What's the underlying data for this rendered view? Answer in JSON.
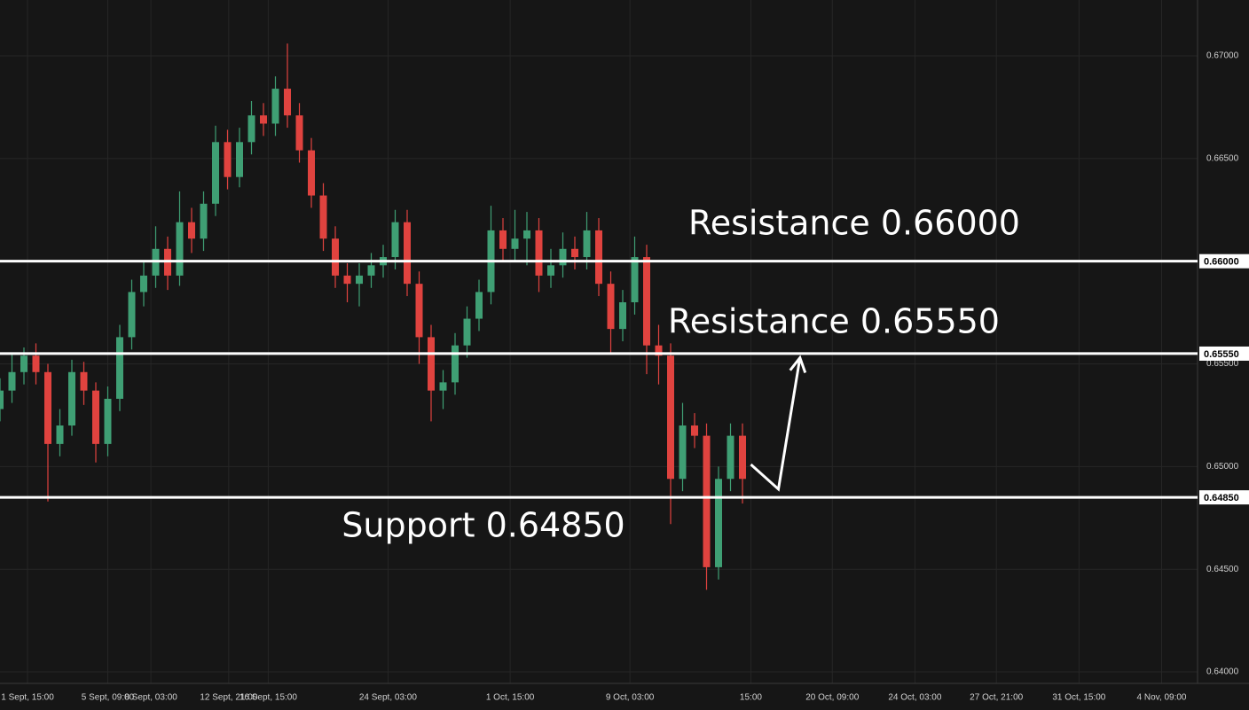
{
  "chart_data": {
    "type": "candlestick",
    "up_color": "#3f9f74",
    "down_color": "#e0433f",
    "grid": true,
    "xlim": [
      0,
      100
    ],
    "ylim": [
      0.63944,
      0.67272
    ],
    "xticks": [
      {
        "value": 2.3,
        "label": "1 Sept, 15:00"
      },
      {
        "value": 9.0,
        "label": "5 Sept, 09:00"
      },
      {
        "value": 12.6,
        "label": "8 Sept, 03:00"
      },
      {
        "value": 19.1,
        "label": "12 Sept, 21:00"
      },
      {
        "value": 22.4,
        "label": "16 Sept, 15:00"
      },
      {
        "value": 32.4,
        "label": "24 Sept, 03:00"
      },
      {
        "value": 42.6,
        "label": "1 Oct, 15:00"
      },
      {
        "value": 52.6,
        "label": "9 Oct, 03:00"
      },
      {
        "value": 62.7,
        "label": "15:00"
      },
      {
        "value": 69.5,
        "label": "20 Oct, 09:00"
      },
      {
        "value": 76.4,
        "label": "24 Oct, 03:00"
      },
      {
        "value": 83.2,
        "label": "27 Oct, 21:00"
      },
      {
        "value": 90.1,
        "label": "31 Oct, 15:00"
      },
      {
        "value": 97.0,
        "label": "4 Nov, 09:00"
      }
    ],
    "yticks": [
      {
        "value": 0.64,
        "label": "0.64000"
      },
      {
        "value": 0.645,
        "label": "0.64500"
      },
      {
        "value": 0.65,
        "label": "0.65000"
      },
      {
        "value": 0.655,
        "label": "0.65500"
      },
      {
        "value": 0.66,
        "label": "0.66000"
      },
      {
        "value": 0.665,
        "label": "0.66500"
      },
      {
        "value": 0.67,
        "label": "0.67000"
      }
    ],
    "x": [
      0,
      1,
      2,
      3,
      4,
      5,
      6,
      7,
      8,
      9,
      10,
      11,
      12,
      13,
      14,
      15,
      16,
      17,
      18,
      19,
      20,
      21,
      22,
      23,
      24,
      25,
      26,
      27,
      28,
      29,
      30,
      31,
      32,
      33,
      34,
      35,
      36,
      37,
      38,
      39,
      40,
      41,
      42,
      43,
      44,
      45,
      46,
      47,
      48,
      49,
      50,
      51,
      52,
      53,
      54,
      55,
      56,
      57,
      58,
      59,
      60,
      61,
      62
    ],
    "open": [
      0.6528,
      0.6537,
      0.6546,
      0.6554,
      0.6546,
      0.6511,
      0.652,
      0.6546,
      0.6537,
      0.6511,
      0.6533,
      0.6563,
      0.6585,
      0.6593,
      0.6606,
      0.6593,
      0.6619,
      0.6611,
      0.6628,
      0.6658,
      0.6641,
      0.6658,
      0.6671,
      0.6667,
      0.6684,
      0.6671,
      0.6654,
      0.6632,
      0.6611,
      0.6593,
      0.6589,
      0.6593,
      0.6598,
      0.6602,
      0.6619,
      0.6589,
      0.6563,
      0.6537,
      0.6541,
      0.6559,
      0.6572,
      0.6585,
      0.6615,
      0.6606,
      0.6611,
      0.6615,
      0.6593,
      0.6598,
      0.6606,
      0.6602,
      0.6615,
      0.6589,
      0.6567,
      0.658,
      0.6602,
      0.6559,
      0.6554,
      0.6494,
      0.652,
      0.6515,
      0.6451,
      0.6494,
      0.6515
    ],
    "high": [
      0.6543,
      0.6555,
      0.6558,
      0.656,
      0.655,
      0.6528,
      0.6552,
      0.6551,
      0.6541,
      0.6539,
      0.6569,
      0.6591,
      0.66,
      0.6617,
      0.6612,
      0.6634,
      0.6626,
      0.6634,
      0.6666,
      0.6664,
      0.6665,
      0.6678,
      0.6677,
      0.669,
      0.6706,
      0.6677,
      0.666,
      0.6638,
      0.6617,
      0.6599,
      0.6599,
      0.6604,
      0.6608,
      0.6625,
      0.6625,
      0.6595,
      0.6569,
      0.6547,
      0.6565,
      0.6578,
      0.6591,
      0.6627,
      0.6621,
      0.6625,
      0.6624,
      0.6621,
      0.6606,
      0.6614,
      0.6612,
      0.6624,
      0.6621,
      0.6595,
      0.6586,
      0.6612,
      0.6608,
      0.6569,
      0.656,
      0.6531,
      0.6526,
      0.6521,
      0.65,
      0.6521,
      0.6521
    ],
    "low": [
      0.6522,
      0.6531,
      0.654,
      0.654,
      0.6483,
      0.6505,
      0.6515,
      0.653,
      0.6502,
      0.6505,
      0.6527,
      0.6557,
      0.6578,
      0.6587,
      0.6586,
      0.6588,
      0.6604,
      0.6605,
      0.6622,
      0.6635,
      0.6636,
      0.6652,
      0.6661,
      0.6661,
      0.6665,
      0.6648,
      0.6626,
      0.6605,
      0.6587,
      0.658,
      0.6578,
      0.6587,
      0.6592,
      0.6596,
      0.6583,
      0.655,
      0.6522,
      0.6528,
      0.6535,
      0.6553,
      0.6566,
      0.6579,
      0.66,
      0.66,
      0.6598,
      0.6585,
      0.6587,
      0.6592,
      0.6596,
      0.6596,
      0.6583,
      0.6555,
      0.6561,
      0.6574,
      0.6545,
      0.654,
      0.6472,
      0.6488,
      0.6509,
      0.644,
      0.6445,
      0.6488,
      0.6482
    ],
    "close": [
      0.6537,
      0.6546,
      0.6554,
      0.6546,
      0.6511,
      0.652,
      0.6546,
      0.6537,
      0.6511,
      0.6533,
      0.6563,
      0.6585,
      0.6593,
      0.6606,
      0.6593,
      0.6619,
      0.6611,
      0.6628,
      0.6658,
      0.6641,
      0.6658,
      0.6671,
      0.6667,
      0.6684,
      0.6671,
      0.6654,
      0.6632,
      0.6611,
      0.6593,
      0.6589,
      0.6593,
      0.6598,
      0.6602,
      0.6619,
      0.6589,
      0.6563,
      0.6537,
      0.6541,
      0.6559,
      0.6572,
      0.6585,
      0.6615,
      0.6606,
      0.6611,
      0.6615,
      0.6593,
      0.6598,
      0.6606,
      0.6602,
      0.6615,
      0.6589,
      0.6567,
      0.658,
      0.6602,
      0.6559,
      0.6554,
      0.6494,
      0.652,
      0.6515,
      0.6451,
      0.6494,
      0.6515,
      0.6494
    ],
    "levels": [
      {
        "value": 0.66,
        "label": "0.66000",
        "annotation": "Resistance 0.66000"
      },
      {
        "value": 0.6555,
        "label": "0.65550",
        "annotation": "Resistance 0.65550"
      },
      {
        "value": 0.6485,
        "label": "0.64850",
        "annotation": "Support 0.64850"
      }
    ],
    "projection": {
      "x": [
        62.7,
        65.0,
        66.8
      ],
      "values": [
        0.6501,
        0.6489,
        0.6553
      ]
    }
  }
}
